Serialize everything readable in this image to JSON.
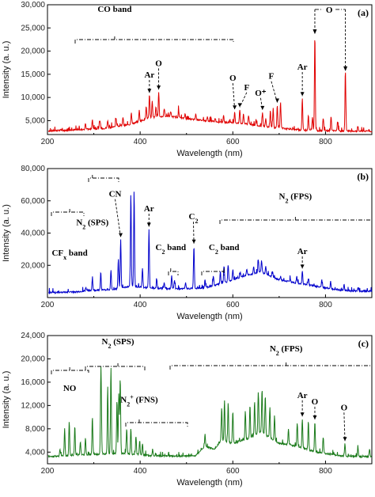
{
  "chart_data": [
    {
      "type": "line",
      "panel_label": "(a)",
      "xlabel": "Wavelength (nm)",
      "ylabel": "Intensity (a. u.)",
      "xlim": [
        200,
        900
      ],
      "ylim": [
        2000,
        30000
      ],
      "x_ticks": [
        "200",
        "400",
        "600",
        "800"
      ],
      "y_ticks": [
        "5,000",
        "10,000",
        "15,000",
        "20,000",
        "25,000",
        "30,000"
      ],
      "color": "#e00000",
      "baseline": [
        [
          200,
          2800
        ],
        [
          260,
          3000
        ],
        [
          320,
          3300
        ],
        [
          380,
          4200
        ],
        [
          420,
          5600
        ],
        [
          460,
          6000
        ],
        [
          500,
          5400
        ],
        [
          560,
          4800
        ],
        [
          620,
          4400
        ],
        [
          680,
          3600
        ],
        [
          740,
          3000
        ],
        [
          800,
          2800
        ],
        [
          900,
          2700
        ]
      ],
      "peaks": [
        [
          282,
          4500
        ],
        [
          297,
          5200
        ],
        [
          313,
          4900
        ],
        [
          330,
          5100
        ],
        [
          348,
          5600
        ],
        [
          363,
          5800
        ],
        [
          381,
          6800
        ],
        [
          398,
          7200
        ],
        [
          413,
          8200
        ],
        [
          420,
          10500
        ],
        [
          426,
          9200
        ],
        [
          434,
          8000
        ],
        [
          440,
          11200
        ],
        [
          452,
          7600
        ],
        [
          466,
          6800
        ],
        [
          483,
          7400
        ],
        [
          497,
          6500
        ],
        [
          520,
          6300
        ],
        [
          545,
          5800
        ],
        [
          562,
          5600
        ],
        [
          580,
          6000
        ],
        [
          604,
          6900
        ],
        [
          615,
          7400
        ],
        [
          623,
          6400
        ],
        [
          634,
          6200
        ],
        [
          650,
          5200
        ],
        [
          664,
          6800
        ],
        [
          671,
          5400
        ],
        [
          681,
          7100
        ],
        [
          687,
          7200
        ],
        [
          696,
          8400
        ],
        [
          703,
          8900
        ],
        [
          750,
          9800
        ],
        [
          763,
          6200
        ],
        [
          772,
          5800
        ],
        [
          777,
          23500
        ],
        [
          795,
          5600
        ],
        [
          812,
          6000
        ],
        [
          826,
          4800
        ],
        [
          843,
          15500
        ],
        [
          870,
          3600
        ]
      ],
      "annotations": [
        {
          "text": "CO band",
          "x": 345,
          "y": 28500
        },
        {
          "text": "Ar",
          "x": 420,
          "y": 14300
        },
        {
          "text": "O",
          "x": 440,
          "y": 16800
        },
        {
          "text": "O",
          "x": 600,
          "y": 13600
        },
        {
          "text": "F",
          "x": 630,
          "y": 11600
        },
        {
          "text": "O⁺",
          "x": 660,
          "y": 10400
        },
        {
          "text": "F",
          "x": 683,
          "y": 14000
        },
        {
          "text": "Ar",
          "x": 750,
          "y": 16000
        },
        {
          "text": "O",
          "x": 808,
          "y": 28300
        }
      ]
    },
    {
      "type": "line",
      "panel_label": "(b)",
      "xlabel": "Wavelength (nm)",
      "ylabel": "Intensity (a. u.)",
      "xlim": [
        200,
        900
      ],
      "ylim": [
        0,
        80000
      ],
      "x_ticks": [
        "200",
        "400",
        "600",
        "800"
      ],
      "y_ticks": [
        "20,000",
        "40,000",
        "60,000",
        "80,000"
      ],
      "color": "#0000cc",
      "baseline": [
        [
          200,
          3000
        ],
        [
          260,
          3500
        ],
        [
          300,
          4500
        ],
        [
          340,
          5000
        ],
        [
          380,
          7000
        ],
        [
          420,
          6000
        ],
        [
          460,
          5500
        ],
        [
          500,
          5500
        ],
        [
          540,
          6000
        ],
        [
          580,
          9000
        ],
        [
          620,
          13000
        ],
        [
          660,
          16000
        ],
        [
          700,
          11000
        ],
        [
          740,
          9000
        ],
        [
          780,
          7000
        ],
        [
          820,
          5000
        ],
        [
          860,
          4000
        ],
        [
          900,
          4000
        ]
      ],
      "peaks": [
        [
          283,
          6500
        ],
        [
          297,
          11500
        ],
        [
          315,
          15500
        ],
        [
          337,
          17500
        ],
        [
          353,
          24000
        ],
        [
          358,
          36000
        ],
        [
          380,
          64500
        ],
        [
          387,
          65000
        ],
        [
          405,
          18500
        ],
        [
          419,
          42500
        ],
        [
          436,
          11000
        ],
        [
          452,
          9500
        ],
        [
          468,
          13500
        ],
        [
          474,
          10800
        ],
        [
          498,
          9000
        ],
        [
          516,
          32000
        ],
        [
          540,
          11000
        ],
        [
          558,
          13500
        ],
        [
          573,
          16000
        ],
        [
          581,
          19500
        ],
        [
          590,
          20000
        ],
        [
          600,
          17500
        ],
        [
          616,
          15500
        ],
        [
          630,
          18000
        ],
        [
          645,
          19500
        ],
        [
          655,
          23500
        ],
        [
          662,
          23000
        ],
        [
          671,
          19500
        ],
        [
          686,
          16000
        ],
        [
          703,
          13000
        ],
        [
          724,
          12000
        ],
        [
          738,
          13000
        ],
        [
          750,
          16500
        ],
        [
          763,
          12000
        ],
        [
          792,
          11000
        ],
        [
          811,
          10000
        ],
        [
          840,
          8000
        ],
        [
          870,
          6500
        ]
      ],
      "annotations": [
        {
          "text": "CF",
          "sub": "x",
          "tail": " band",
          "x": 248,
          "y": 26000
        },
        {
          "text": "N",
          "sub": "2",
          "tail": " (SPS)",
          "x": 297,
          "y": 45000
        },
        {
          "text": "CN",
          "x": 346,
          "y": 62500
        },
        {
          "text": "Ar",
          "x": 419,
          "y": 53500
        },
        {
          "text": "C",
          "sub": "2",
          "tail": " band",
          "x": 466,
          "y": 29500
        },
        {
          "text": "C",
          "sub": "2",
          "x": 515,
          "y": 48500
        },
        {
          "text": "C",
          "sub": "2",
          "tail": " band",
          "x": 581,
          "y": 29500
        },
        {
          "text": "N",
          "sub": "2",
          "tail": " (FPS)",
          "x": 735,
          "y": 61000
        },
        {
          "text": "Ar",
          "x": 750,
          "y": 27000
        }
      ]
    },
    {
      "type": "line",
      "panel_label": "(c)",
      "xlabel": "Wavelength (nm)",
      "ylabel": "Intensity (a. u.)",
      "xlim": [
        200,
        900
      ],
      "ylim": [
        2000,
        24000
      ],
      "x_ticks": [
        "200",
        "400",
        "600",
        "800"
      ],
      "y_ticks": [
        "4,000",
        "8,000",
        "12,000",
        "16,000",
        "20,000",
        "24,000"
      ],
      "color": "#1a7a1a",
      "baseline": [
        [
          200,
          3200
        ],
        [
          240,
          3400
        ],
        [
          300,
          3600
        ],
        [
          360,
          3800
        ],
        [
          420,
          3400
        ],
        [
          480,
          3300
        ],
        [
          520,
          3400
        ],
        [
          540,
          5000
        ],
        [
          560,
          4500
        ],
        [
          575,
          6000
        ],
        [
          600,
          5500
        ],
        [
          640,
          6500
        ],
        [
          660,
          7500
        ],
        [
          700,
          5500
        ],
        [
          740,
          5000
        ],
        [
          780,
          4000
        ],
        [
          840,
          3300
        ],
        [
          900,
          3200
        ]
      ],
      "peaks": [
        [
          227,
          4500
        ],
        [
          237,
          8000
        ],
        [
          247,
          9300
        ],
        [
          259,
          8600
        ],
        [
          271,
          5800
        ],
        [
          282,
          6500
        ],
        [
          297,
          10100
        ],
        [
          315,
          13500
        ],
        [
          316,
          11000
        ],
        [
          330,
          15200
        ],
        [
          337,
          18500
        ],
        [
          350,
          13000
        ],
        [
          354,
          14000
        ],
        [
          357,
          16800
        ],
        [
          371,
          8000
        ],
        [
          380,
          8200
        ],
        [
          391,
          6500
        ],
        [
          399,
          6000
        ],
        [
          405,
          5500
        ],
        [
          427,
          4500
        ],
        [
          540,
          7000
        ],
        [
          576,
          11600
        ],
        [
          582,
          13000
        ],
        [
          590,
          12600
        ],
        [
          600,
          11000
        ],
        [
          627,
          11000
        ],
        [
          637,
          12000
        ],
        [
          647,
          12600
        ],
        [
          655,
          14300
        ],
        [
          663,
          14800
        ],
        [
          670,
          13600
        ],
        [
          680,
          11800
        ],
        [
          690,
          10000
        ],
        [
          720,
          8000
        ],
        [
          739,
          9000
        ],
        [
          750,
          9700
        ],
        [
          763,
          9300
        ],
        [
          777,
          9200
        ],
        [
          795,
          6500
        ],
        [
          842,
          5500
        ],
        [
          870,
          4800
        ],
        [
          895,
          4600
        ]
      ],
      "annotations": [
        {
          "text": "NO",
          "x": 248,
          "y": 14500
        },
        {
          "text": "N",
          "sub": "2",
          "tail": " (SPS)",
          "x": 352,
          "y": 22500
        },
        {
          "text": "N",
          "sub": "2",
          "sup": "+",
          "tail": " (FNS)",
          "x": 398,
          "y": 12500
        },
        {
          "text": "N",
          "sub": "2",
          "tail": " (FPS)",
          "x": 715,
          "y": 21300
        },
        {
          "text": "Ar",
          "x": 750,
          "y": 13300
        },
        {
          "text": "O",
          "x": 777,
          "y": 12200
        },
        {
          "text": "O",
          "x": 840,
          "y": 11200
        }
      ]
    }
  ]
}
